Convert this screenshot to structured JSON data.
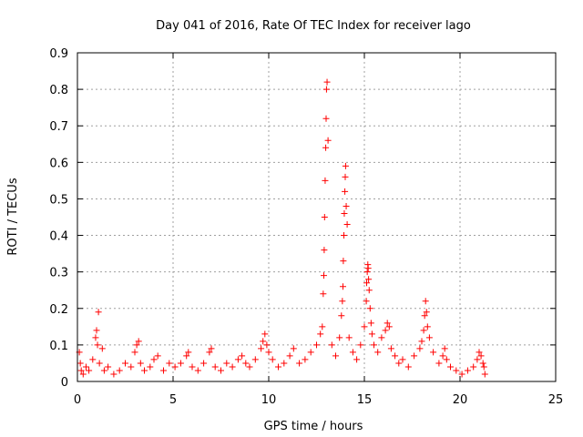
{
  "chart_data": {
    "type": "scatter",
    "title": "Day 041 of 2016, Rate Of TEC Index for receiver lago",
    "xlabel": "GPS time / hours",
    "ylabel": "ROTI / TECUs",
    "xlim": [
      0,
      25
    ],
    "ylim": [
      0,
      0.9
    ],
    "xticks": [
      0,
      5,
      10,
      15,
      20,
      25
    ],
    "xtick_labels": [
      "0",
      "5",
      "10",
      "15",
      "20",
      "25"
    ],
    "yticks": [
      0,
      0.1,
      0.2,
      0.3,
      0.4,
      0.5,
      0.6,
      0.7,
      0.8,
      0.9
    ],
    "ytick_labels": [
      "0",
      "0.1",
      "0.2",
      "0.3",
      "0.4",
      "0.5",
      "0.6",
      "0.7",
      "0.8",
      "0.9"
    ],
    "grid": true,
    "marker": "plus",
    "color": "#ff0000",
    "series": [
      {
        "x": [
          0.1,
          0.15,
          0.2,
          0.3,
          0.45,
          0.6,
          0.8,
          0.95,
          1.0,
          1.05,
          1.1,
          1.15,
          1.3,
          1.4,
          1.6,
          1.9,
          2.2,
          2.5,
          2.8,
          3.0,
          3.1,
          3.2,
          3.3,
          3.5,
          3.8,
          4.0,
          4.2,
          4.5,
          4.8,
          5.1,
          5.4,
          5.7,
          5.8,
          6.0,
          6.3,
          6.6,
          6.9,
          7.0,
          7.2,
          7.5,
          7.8,
          8.1,
          8.4,
          8.6,
          8.8,
          9.0,
          9.3,
          9.6,
          9.7,
          9.8,
          9.9,
          10.0,
          10.2,
          10.5,
          10.8,
          11.1,
          11.3,
          11.6,
          11.9,
          12.2,
          12.5,
          12.7,
          12.8,
          12.85,
          12.88,
          12.9,
          12.92,
          12.95,
          12.98,
          13.0,
          13.02,
          13.05,
          13.1,
          13.3,
          13.5,
          13.7,
          13.8,
          13.85,
          13.88,
          13.9,
          13.93,
          13.95,
          13.98,
          14.0,
          14.02,
          14.05,
          14.1,
          14.2,
          14.4,
          14.6,
          14.8,
          15.0,
          15.1,
          15.12,
          15.15,
          15.18,
          15.2,
          15.22,
          15.25,
          15.3,
          15.35,
          15.4,
          15.5,
          15.7,
          15.9,
          16.1,
          16.2,
          16.3,
          16.4,
          16.6,
          16.8,
          17.0,
          17.3,
          17.6,
          17.9,
          18.0,
          18.1,
          18.15,
          18.2,
          18.25,
          18.3,
          18.4,
          18.6,
          18.9,
          19.1,
          19.2,
          19.3,
          19.5,
          19.8,
          20.1,
          20.4,
          20.7,
          20.9,
          21.0,
          21.1,
          21.2,
          21.25,
          21.3
        ],
        "y": [
          0.08,
          0.05,
          0.03,
          0.02,
          0.04,
          0.03,
          0.06,
          0.12,
          0.14,
          0.1,
          0.19,
          0.05,
          0.09,
          0.03,
          0.04,
          0.02,
          0.03,
          0.05,
          0.04,
          0.08,
          0.1,
          0.11,
          0.05,
          0.03,
          0.04,
          0.06,
          0.07,
          0.03,
          0.05,
          0.04,
          0.05,
          0.07,
          0.08,
          0.04,
          0.03,
          0.05,
          0.08,
          0.09,
          0.04,
          0.03,
          0.05,
          0.04,
          0.06,
          0.07,
          0.05,
          0.04,
          0.06,
          0.09,
          0.11,
          0.13,
          0.1,
          0.08,
          0.06,
          0.04,
          0.05,
          0.07,
          0.09,
          0.05,
          0.06,
          0.08,
          0.1,
          0.13,
          0.15,
          0.24,
          0.29,
          0.36,
          0.45,
          0.55,
          0.64,
          0.72,
          0.8,
          0.82,
          0.66,
          0.1,
          0.07,
          0.12,
          0.18,
          0.22,
          0.26,
          0.33,
          0.4,
          0.46,
          0.52,
          0.56,
          0.59,
          0.48,
          0.43,
          0.12,
          0.08,
          0.06,
          0.1,
          0.15,
          0.22,
          0.27,
          0.3,
          0.32,
          0.31,
          0.28,
          0.25,
          0.2,
          0.16,
          0.13,
          0.1,
          0.08,
          0.12,
          0.14,
          0.16,
          0.15,
          0.09,
          0.07,
          0.05,
          0.06,
          0.04,
          0.07,
          0.09,
          0.11,
          0.14,
          0.18,
          0.22,
          0.19,
          0.15,
          0.12,
          0.08,
          0.05,
          0.07,
          0.09,
          0.06,
          0.04,
          0.03,
          0.02,
          0.03,
          0.04,
          0.06,
          0.08,
          0.07,
          0.05,
          0.04,
          0.02
        ]
      }
    ]
  }
}
